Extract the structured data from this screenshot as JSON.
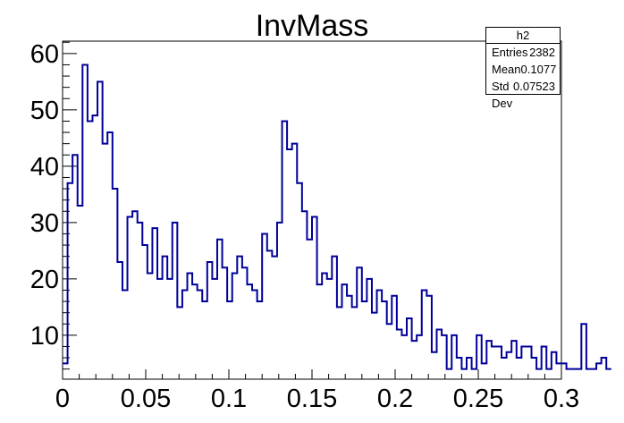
{
  "chart_data": {
    "type": "histogram",
    "title": "InvMass",
    "xlabel": "",
    "ylabel": "",
    "xlim": [
      0,
      0.3
    ],
    "ylim": [
      2.2,
      62.2
    ],
    "bin_width": 0.003,
    "bin_start": 0,
    "x_ticks": [
      "0",
      "0.05",
      "0.1",
      "0.15",
      "0.2",
      "0.25",
      "0.3"
    ],
    "y_ticks": [
      "10",
      "20",
      "30",
      "40",
      "50",
      "60"
    ],
    "x_tick_values": [
      0,
      0.05,
      0.1,
      0.15,
      0.2,
      0.25,
      0.3
    ],
    "y_tick_values": [
      10,
      20,
      30,
      40,
      50,
      60
    ],
    "values": [
      5,
      37,
      42,
      33,
      58,
      48,
      49,
      55,
      44,
      46,
      36,
      23,
      18,
      31,
      32,
      30,
      26,
      21,
      29,
      20,
      24,
      20,
      30,
      15,
      18,
      21,
      19,
      18,
      16,
      23,
      20,
      27,
      22,
      16,
      21,
      24,
      22,
      19,
      18,
      16,
      28,
      25,
      24,
      30,
      48,
      43,
      44,
      37,
      32,
      27,
      31,
      19,
      21,
      20,
      24,
      15,
      19,
      17,
      15,
      22,
      16,
      20,
      14,
      18,
      16,
      12,
      17,
      11,
      10,
      13,
      9,
      10,
      18,
      17,
      7,
      11,
      10,
      4,
      10,
      6,
      4,
      6,
      4,
      10,
      5,
      9,
      8,
      8,
      6,
      7,
      9,
      6,
      8,
      8,
      6,
      4,
      8,
      4,
      7,
      5,
      5,
      4,
      4,
      4,
      12,
      4,
      4,
      5,
      6,
      4
    ],
    "grid": false,
    "line_color": "#000099",
    "legend": "none"
  },
  "stats": {
    "name": "h2",
    "rows": [
      {
        "label": "Entries",
        "value": "2382"
      },
      {
        "label": "Mean",
        "value": "0.1077"
      },
      {
        "label": "Std Dev",
        "value": "0.07523"
      }
    ]
  }
}
